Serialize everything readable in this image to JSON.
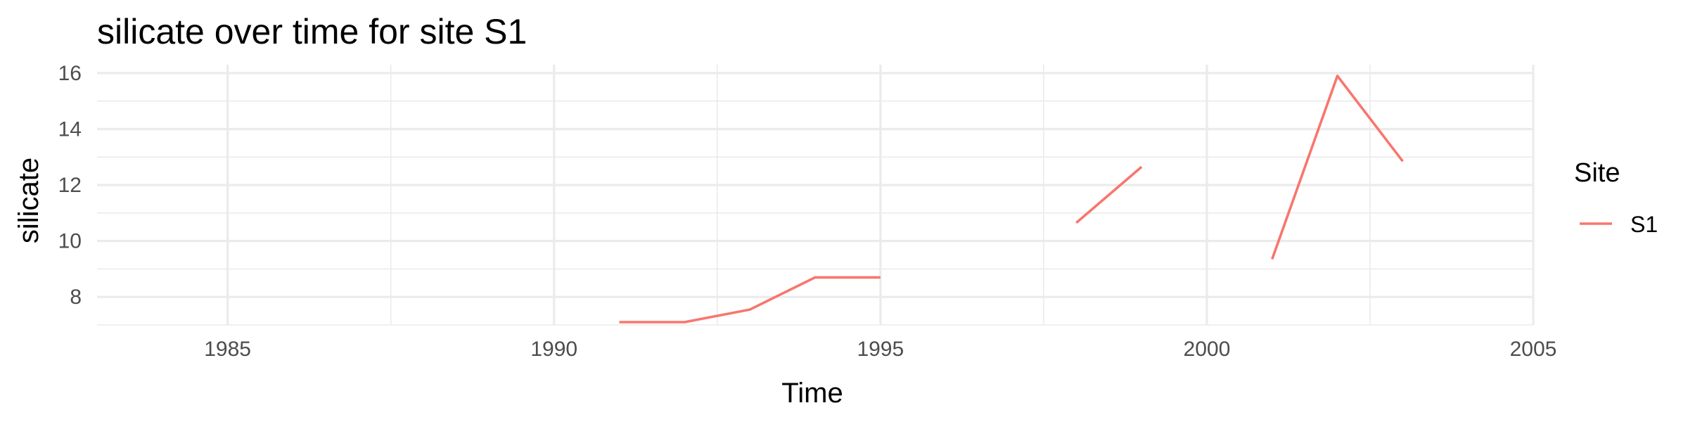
{
  "chart_data": {
    "type": "line",
    "title": "silicate over time for site S1",
    "xlabel": "Time",
    "ylabel": "silicate",
    "xlim": [
      1983,
      2005
    ],
    "ylim": [
      7,
      16.3
    ],
    "x_ticks": [
      1985,
      1990,
      1995,
      2000,
      2005
    ],
    "x_minor_ticks": [
      1987.5,
      1992.5,
      1997.5,
      2002.5
    ],
    "y_ticks": [
      8,
      10,
      12,
      14,
      16
    ],
    "y_minor_ticks": [
      7,
      9,
      11,
      13,
      15
    ],
    "grid": true,
    "legend": {
      "title": "Site",
      "position": "right"
    },
    "series": [
      {
        "name": "S1",
        "color": "#f8766d",
        "segments": [
          [
            [
              1991,
              7.1
            ],
            [
              1992,
              7.1
            ],
            [
              1993,
              7.55
            ],
            [
              1994,
              8.7
            ],
            [
              1995,
              8.7
            ]
          ],
          [
            [
              1998,
              10.65
            ],
            [
              1999,
              12.65
            ]
          ],
          [
            [
              2001,
              9.35
            ],
            [
              2002,
              15.9
            ],
            [
              2003,
              12.85
            ]
          ]
        ]
      }
    ]
  }
}
